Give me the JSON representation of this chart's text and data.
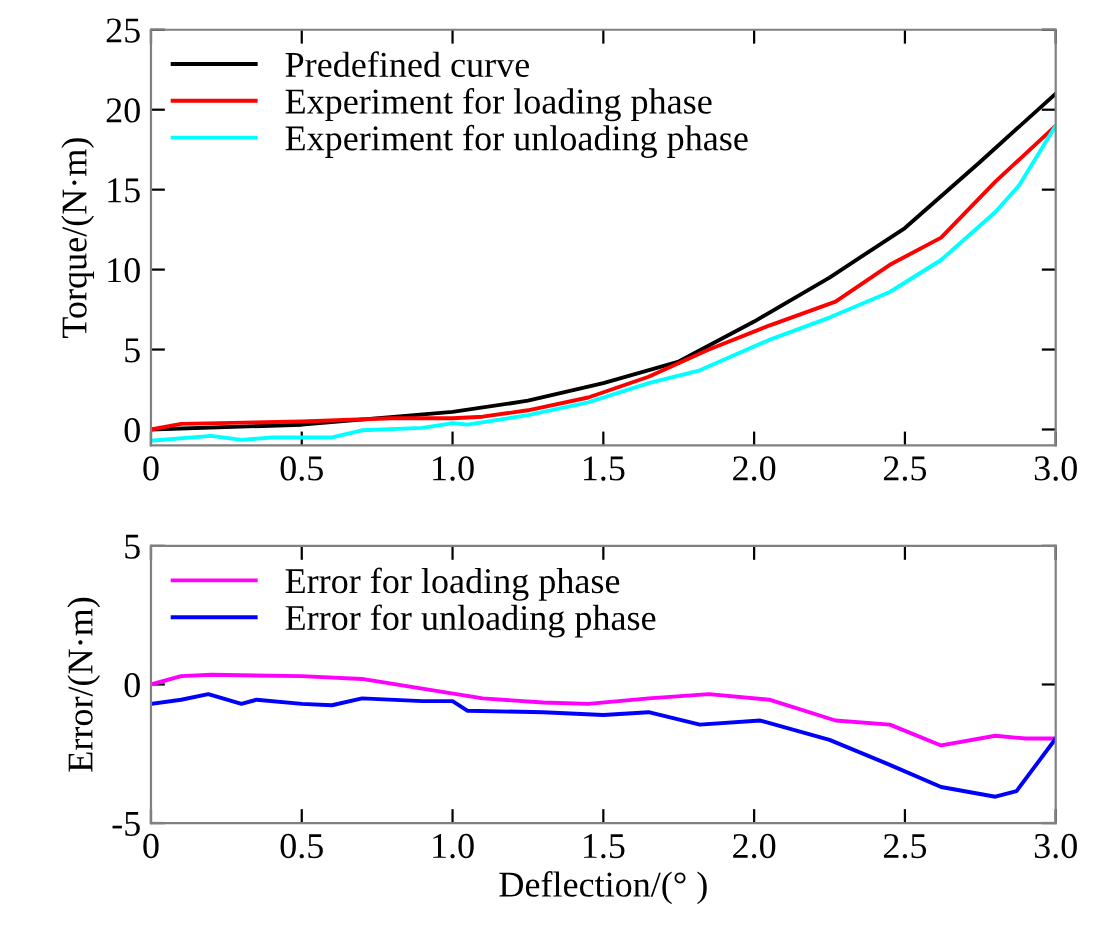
{
  "chart_data": [
    {
      "type": "line",
      "ylabel": "Torque/(N·m)",
      "xlim": [
        0,
        3
      ],
      "xticks": [
        0,
        0.5,
        {
          "value": 1,
          "label": "1.0"
        },
        1.5,
        {
          "value": 2,
          "label": "2.0"
        },
        2.5,
        {
          "value": 3,
          "label": "3.0"
        }
      ],
      "ylim": [
        -1,
        25
      ],
      "yticks": [
        0,
        5,
        10,
        15,
        20,
        25
      ],
      "legend": "top left",
      "grid": false,
      "series": [
        {
          "name": "Predefined curve",
          "color": "#000000",
          "x": [
            0,
            0.5,
            1.0,
            1.25,
            1.5,
            1.75,
            2.0,
            2.25,
            2.5,
            2.75,
            3.0
          ],
          "values": [
            0,
            0.3,
            1.1,
            1.8,
            2.9,
            4.25,
            6.75,
            9.5,
            12.6,
            16.75,
            21
          ]
        },
        {
          "name": "Experiment for loading phase",
          "color": "#ff0000",
          "x": [
            0,
            0.1,
            0.5,
            0.8,
            1.0,
            1.1,
            1.25,
            1.45,
            1.65,
            1.85,
            2.05,
            2.27,
            2.45,
            2.62,
            2.8,
            3.0
          ],
          "values": [
            0,
            0.35,
            0.5,
            0.7,
            0.7,
            0.8,
            1.2,
            2.0,
            3.3,
            5.0,
            6.5,
            8.0,
            10.3,
            12.0,
            15.5,
            19
          ]
        },
        {
          "name": "Experiment for unloading phase",
          "color": "#00ffff",
          "x": [
            0,
            0.2,
            0.3,
            0.4,
            0.6,
            0.7,
            0.9,
            1.0,
            1.05,
            1.25,
            1.45,
            1.65,
            1.82,
            2.05,
            2.25,
            2.45,
            2.62,
            2.8,
            2.88,
            3.0
          ],
          "values": [
            -0.7,
            -0.4,
            -0.65,
            -0.5,
            -0.5,
            -0.05,
            0.1,
            0.4,
            0.3,
            0.9,
            1.7,
            2.9,
            3.7,
            5.6,
            7.0,
            8.6,
            10.6,
            13.6,
            15.3,
            19
          ]
        }
      ]
    },
    {
      "type": "line",
      "xlabel": "Deflection/(° )",
      "ylabel": "Error/(N·m)",
      "xlim": [
        0,
        3
      ],
      "xticks": [
        0,
        0.5,
        {
          "value": 1,
          "label": "1.0"
        },
        1.5,
        {
          "value": 2,
          "label": "2.0"
        },
        2.5,
        {
          "value": 3,
          "label": "3.0"
        }
      ],
      "ylim": [
        -5,
        5
      ],
      "yticks": [
        -5,
        0,
        5
      ],
      "legend": "top left",
      "grid": false,
      "series": [
        {
          "name": "Error for loading phase",
          "color": "#ff00ff",
          "x": [
            0,
            0.1,
            0.2,
            0.5,
            0.7,
            0.9,
            1.1,
            1.3,
            1.45,
            1.65,
            1.85,
            2.05,
            2.27,
            2.45,
            2.62,
            2.8,
            2.9,
            3.0
          ],
          "values": [
            0,
            0.3,
            0.35,
            0.3,
            0.2,
            -0.15,
            -0.5,
            -0.65,
            -0.7,
            -0.5,
            -0.35,
            -0.55,
            -1.3,
            -1.45,
            -2.2,
            -1.85,
            -1.95,
            -1.95
          ]
        },
        {
          "name": "Error for unloading phase",
          "color": "#0000ff",
          "x": [
            0,
            0.1,
            0.19,
            0.3,
            0.35,
            0.5,
            0.6,
            0.7,
            0.9,
            1.0,
            1.05,
            1.3,
            1.5,
            1.65,
            1.82,
            2.02,
            2.25,
            2.45,
            2.62,
            2.8,
            2.87,
            3.0
          ],
          "values": [
            -0.7,
            -0.55,
            -0.35,
            -0.7,
            -0.55,
            -0.7,
            -0.75,
            -0.5,
            -0.6,
            -0.6,
            -0.95,
            -1.0,
            -1.1,
            -1.0,
            -1.45,
            -1.3,
            -2.0,
            -2.9,
            -3.7,
            -4.05,
            -3.85,
            -1.95
          ]
        }
      ]
    }
  ]
}
